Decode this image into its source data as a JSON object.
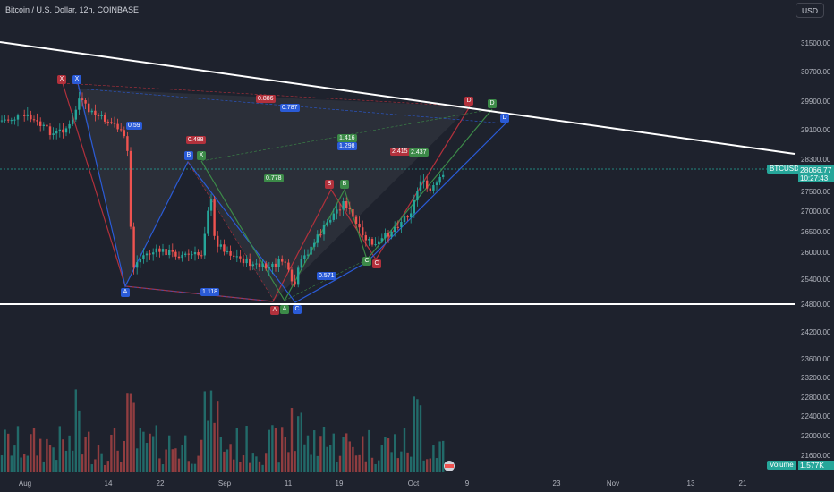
{
  "header": {
    "title": "Bitcoin / U.S. Dollar, 12h, COINBASE",
    "currency_button": "USD"
  },
  "symbol": {
    "ticker": "BTCUSD",
    "last_price": "28066.77",
    "countdown": "10:27:43"
  },
  "volume": {
    "label": "Volume",
    "value": "1.577K"
  },
  "y_axis_ticks": [
    "31500.00",
    "30700.00",
    "29900.00",
    "29100.00",
    "28300.00",
    "27500.00",
    "27000.00",
    "26500.00",
    "26000.00",
    "25400.00",
    "24800.00",
    "24200.00",
    "23600.00",
    "23200.00",
    "22800.00",
    "22400.00",
    "22000.00",
    "21600.00"
  ],
  "x_axis_ticks": [
    "Aug",
    "14",
    "22",
    "Sep",
    "11",
    "19",
    "Oct",
    "9",
    "23",
    "Nov",
    "13",
    "21"
  ],
  "pattern_ratios": {
    "r1": "0.59",
    "r2": "0.488",
    "r3": "0.886",
    "r4": "0.787",
    "r5": "1.416",
    "r6": "1.298",
    "r7": "0.778",
    "r8": "2.415",
    "r9": "2.437",
    "r10": "1.118",
    "r11": "0.571"
  },
  "pattern_points": {
    "x_red": "X",
    "x_blue": "X",
    "a_blue": "A",
    "b_blue": "B",
    "x_green": "X",
    "a_red": "A",
    "a_green": "A",
    "c_blue": "C",
    "b_red": "B",
    "b_green": "B",
    "c_green": "C",
    "c_red": "C",
    "d_red": "D",
    "d_green": "D",
    "d_blue": "D"
  },
  "colors": {
    "background": "#1e222d",
    "up": "#26a69a",
    "down": "#ef5350",
    "trendline": "#ffffff",
    "blue_pattern": "#2a5bd7",
    "red_pattern": "#b2313c",
    "green_pattern": "#3c8a48"
  }
}
